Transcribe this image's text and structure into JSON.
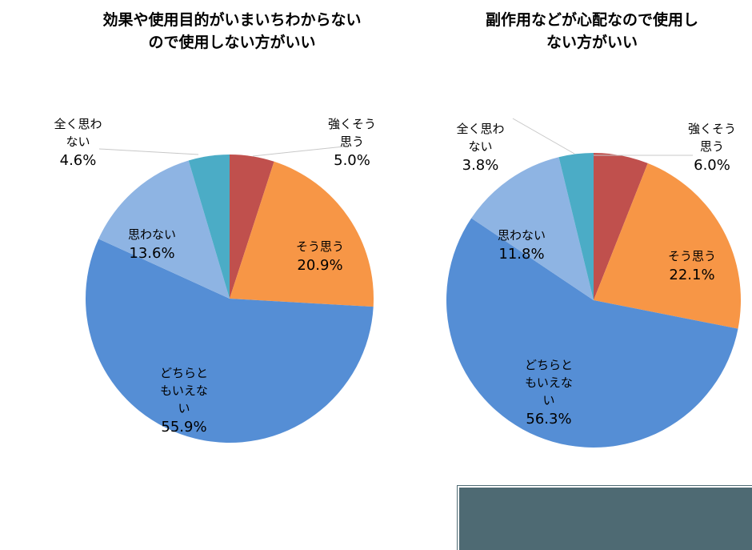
{
  "charts": [
    {
      "title": "効果や使用目的がいまいちわからない\nので使用しない方がいい",
      "labels": [
        {
          "text": "強くそう\n思う",
          "pct": "5.0%"
        },
        {
          "text": "そう思う",
          "pct": "20.9%"
        },
        {
          "text": "どちらと\nもいえな\nい",
          "pct": "55.9%"
        },
        {
          "text": "思わない",
          "pct": "13.6%"
        },
        {
          "text": "全く思わ\nない",
          "pct": "4.6%"
        }
      ]
    },
    {
      "title": "副作用などが心配なので使用し\nない方がいい",
      "labels": [
        {
          "text": "強くそう\n思う",
          "pct": "6.0%"
        },
        {
          "text": "そう思う",
          "pct": "22.1%"
        },
        {
          "text": "どちらと\nもいえな\nい",
          "pct": "56.3%"
        },
        {
          "text": "思わない",
          "pct": "11.8%"
        },
        {
          "text": "全く思わ\nない",
          "pct": "3.8%"
        }
      ]
    }
  ],
  "colors": {
    "strongly_agree": "#C0504D",
    "agree": "#F79646",
    "neutral": "#558ED5",
    "disagree": "#8EB4E3",
    "strongly_disagree": "#4BACC6",
    "box": "#4E6A73"
  },
  "chart_data": [
    {
      "type": "pie",
      "title": "効果や使用目的がいまいちわからないので使用しない方がいい",
      "categories": [
        "強くそう思う",
        "そう思う",
        "どちらともいえない",
        "思わない",
        "全く思わない"
      ],
      "values": [
        5.0,
        20.9,
        55.9,
        13.6,
        4.6
      ],
      "unit": "%",
      "start_angle": "12 o'clock, clockwise",
      "legend": "none (data labels)"
    },
    {
      "type": "pie",
      "title": "副作用などが心配なので使用しない方がいい",
      "categories": [
        "強くそう思う",
        "そう思う",
        "どちらともいえない",
        "思わない",
        "全く思わない"
      ],
      "values": [
        6.0,
        22.1,
        56.3,
        11.8,
        3.8
      ],
      "unit": "%",
      "start_angle": "12 o'clock, clockwise",
      "legend": "none (data labels)"
    }
  ]
}
